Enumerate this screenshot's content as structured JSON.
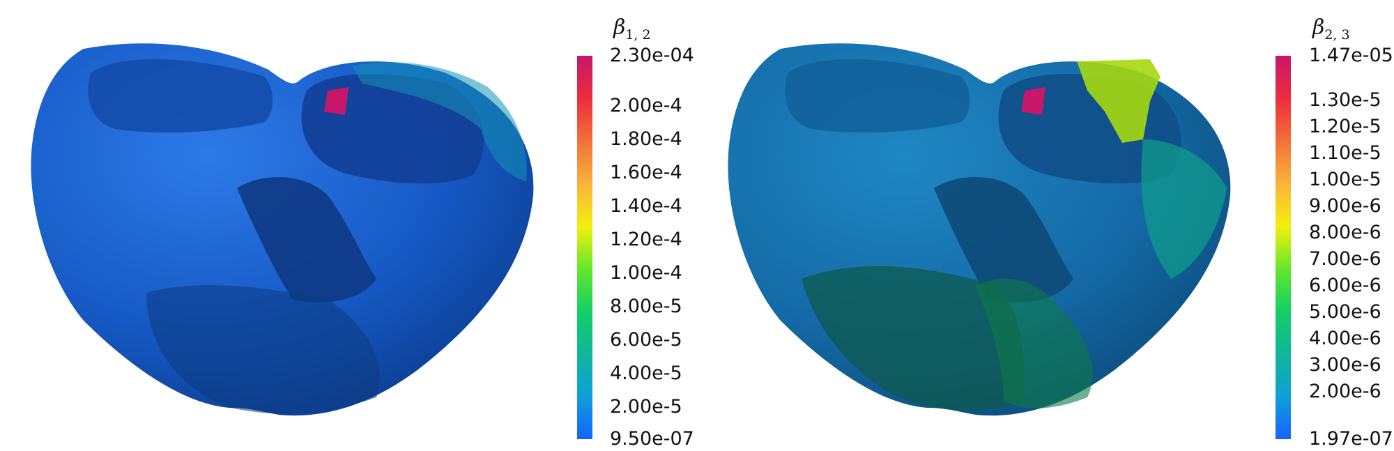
{
  "figures": [
    {
      "colorbar": {
        "symbol": "β",
        "subscript": "1, 2",
        "ticks": [
          "2.30e-04",
          "2.00e-4",
          "1.80e-4",
          "1.60e-4",
          "1.40e-4",
          "1.20e-4",
          "1.00e-4",
          "8.00e-5",
          "6.00e-5",
          "4.00e-5",
          "2.00e-5",
          "9.50e-07"
        ],
        "tick_values": [
          0.00023,
          0.0002,
          0.00018,
          0.00016,
          0.00014,
          0.00012,
          0.0001,
          8e-05,
          6e-05,
          4e-05,
          2e-05,
          9.5e-07
        ],
        "range": [
          9.5e-07,
          0.00023
        ]
      }
    },
    {
      "colorbar": {
        "symbol": "β",
        "subscript": "2, 3",
        "ticks": [
          "1.47e-05",
          "1.30e-5",
          "1.20e-5",
          "1.10e-5",
          "1.00e-5",
          "9.00e-6",
          "8.00e-6",
          "7.00e-6",
          "6.00e-6",
          "5.00e-6",
          "4.00e-6",
          "3.00e-6",
          "2.00e-6",
          "1.97e-07"
        ],
        "tick_values": [
          1.47e-05,
          1.3e-05,
          1.2e-05,
          1.1e-05,
          1e-05,
          9e-06,
          8e-06,
          7e-06,
          6e-06,
          5e-06,
          4e-06,
          3e-06,
          2e-06,
          1.97e-07
        ],
        "range": [
          1.97e-07,
          1.47e-05
        ]
      }
    }
  ],
  "colormap": [
    "#1663ff",
    "#0fa0d8",
    "#10b69a",
    "#14cf66",
    "#63e82a",
    "#f3f00e",
    "#f9b33a",
    "#f2703a",
    "#ee2c3c",
    "#c7176b"
  ]
}
